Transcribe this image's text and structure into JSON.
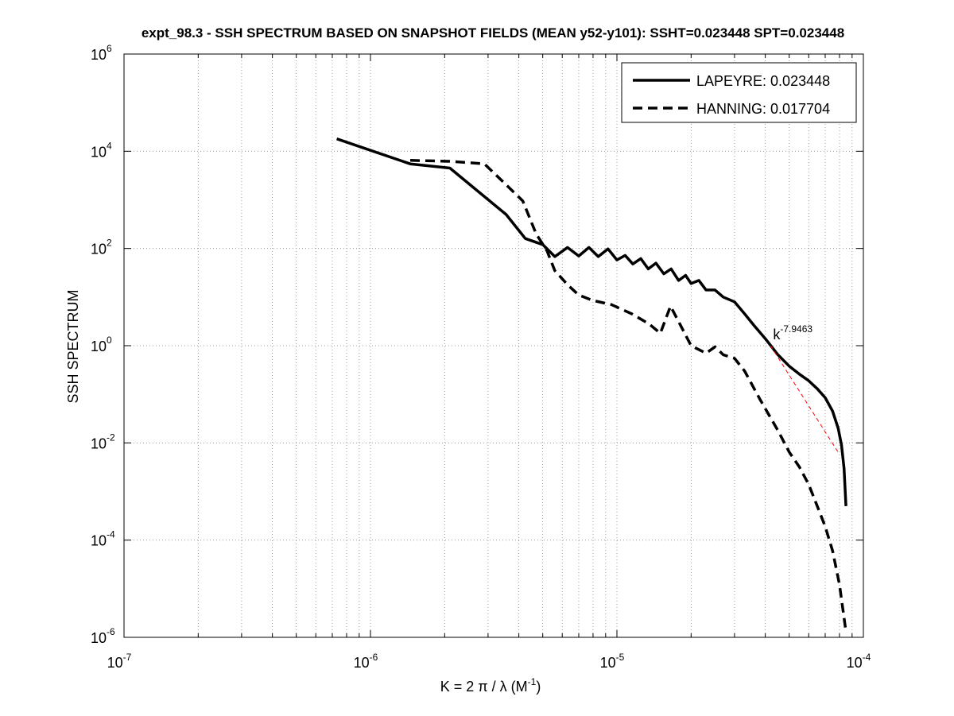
{
  "chart_data": {
    "type": "line",
    "title": "expt_98.3 - SSH SPECTRUM BASED ON SNAPSHOT FIELDS (MEAN y52-y101): SSHT=0.023448 SPT=0.023448",
    "xlabel": {
      "before": "K = 2 π / λ  (M",
      "exp": "-1",
      "after": ")"
    },
    "ylabel": "SSH SPECTRUM",
    "xscale": "log",
    "yscale": "log",
    "xlim": [
      1e-07,
      0.0001
    ],
    "ylim": [
      1e-06,
      1000000.0
    ],
    "grid": true,
    "legend_position": "top-right",
    "x_ticks": [
      {
        "base": "10",
        "exp": "-7",
        "value": 1e-07
      },
      {
        "base": "10",
        "exp": "-6",
        "value": 1e-06
      },
      {
        "base": "10",
        "exp": "-5",
        "value": 1e-05
      },
      {
        "base": "10",
        "exp": "-4",
        "value": 0.0001
      }
    ],
    "y_ticks": [
      {
        "base": "10",
        "exp": "-6",
        "value": 1e-06
      },
      {
        "base": "10",
        "exp": "-4",
        "value": 0.0001
      },
      {
        "base": "10",
        "exp": "-2",
        "value": 0.01
      },
      {
        "base": "10",
        "exp": "0",
        "value": 1
      },
      {
        "base": "10",
        "exp": "2",
        "value": 100
      },
      {
        "base": "10",
        "exp": "4",
        "value": 10000
      },
      {
        "base": "10",
        "exp": "6",
        "value": 1000000
      }
    ],
    "series": [
      {
        "name": "LAPEYRE: 0.023448",
        "style": "solid",
        "color": "#000000",
        "points": [
          [
            7.3e-07,
            18000
          ],
          [
            1.45e-06,
            5500
          ],
          [
            2.1e-06,
            4500
          ],
          [
            3.55e-06,
            500
          ],
          [
            4.25e-06,
            160
          ],
          [
            5e-06,
            120
          ],
          [
            5.6e-06,
            68
          ],
          [
            6.3e-06,
            105
          ],
          [
            7e-06,
            70
          ],
          [
            7.7e-06,
            105
          ],
          [
            8.4e-06,
            68
          ],
          [
            9.2e-06,
            98
          ],
          [
            1e-05,
            58
          ],
          [
            1.08e-05,
            72
          ],
          [
            1.16e-05,
            48
          ],
          [
            1.25e-05,
            62
          ],
          [
            1.34e-05,
            38
          ],
          [
            1.44e-05,
            50
          ],
          [
            1.55e-05,
            30
          ],
          [
            1.66e-05,
            38
          ],
          [
            1.78e-05,
            22
          ],
          [
            1.9e-05,
            28
          ],
          [
            2e-05,
            19
          ],
          [
            2.15e-05,
            22
          ],
          [
            2.3e-05,
            14
          ],
          [
            2.5e-05,
            14
          ],
          [
            2.7e-05,
            10
          ],
          [
            3e-05,
            8
          ],
          [
            3.3e-05,
            4.5
          ],
          [
            3.6e-05,
            2.6
          ],
          [
            4e-05,
            1.4
          ],
          [
            4.5e-05,
            0.65
          ],
          [
            5e-05,
            0.38
          ],
          [
            5.5e-05,
            0.26
          ],
          [
            6e-05,
            0.19
          ],
          [
            6.5e-05,
            0.13
          ],
          [
            7e-05,
            0.085
          ],
          [
            7.5e-05,
            0.045
          ],
          [
            7.9e-05,
            0.02
          ],
          [
            8.15e-05,
            0.009
          ],
          [
            8.35e-05,
            0.003
          ],
          [
            8.5e-05,
            0.0005
          ]
        ]
      },
      {
        "name": "HANNING: 0.017704",
        "style": "dashed",
        "color": "#000000",
        "points": [
          [
            1.45e-06,
            6500
          ],
          [
            2.1e-06,
            6200
          ],
          [
            2.9e-06,
            5500
          ],
          [
            3.5e-06,
            2200
          ],
          [
            4.15e-06,
            950
          ],
          [
            4.7e-06,
            200
          ],
          [
            5.2e-06,
            90
          ],
          [
            5.6e-06,
            35
          ],
          [
            6.3e-06,
            18
          ],
          [
            7e-06,
            11
          ],
          [
            8e-06,
            8.5
          ],
          [
            9.5e-06,
            7
          ],
          [
            1.15e-05,
            4.5
          ],
          [
            1.35e-05,
            2.8
          ],
          [
            1.5e-05,
            1.8
          ],
          [
            1.65e-05,
            6.5
          ],
          [
            1.8e-05,
            2.8
          ],
          [
            2e-05,
            1.0
          ],
          [
            2.3e-05,
            0.7
          ],
          [
            2.5e-05,
            0.95
          ],
          [
            2.7e-05,
            0.65
          ],
          [
            3e-05,
            0.55
          ],
          [
            3.3e-05,
            0.3
          ],
          [
            3.8e-05,
            0.08
          ],
          [
            4.5e-05,
            0.018
          ],
          [
            5e-05,
            0.0065
          ],
          [
            5.5e-05,
            0.0032
          ],
          [
            6e-05,
            0.0014
          ],
          [
            6.5e-05,
            0.0005
          ],
          [
            7e-05,
            0.00019
          ],
          [
            7.5e-05,
            6e-05
          ],
          [
            8e-05,
            1.2e-05
          ],
          [
            8.5e-05,
            1.3e-06
          ]
        ]
      }
    ],
    "fit_line": {
      "color": "#ff0000",
      "style": "dashed",
      "points": [
        [
          4.2e-05,
          1.0
        ],
        [
          8e-05,
          0.0058
        ]
      ]
    },
    "annotation": {
      "base": "k",
      "exp": "-7.9463",
      "x": 4.3e-05,
      "y": 1.35
    }
  }
}
